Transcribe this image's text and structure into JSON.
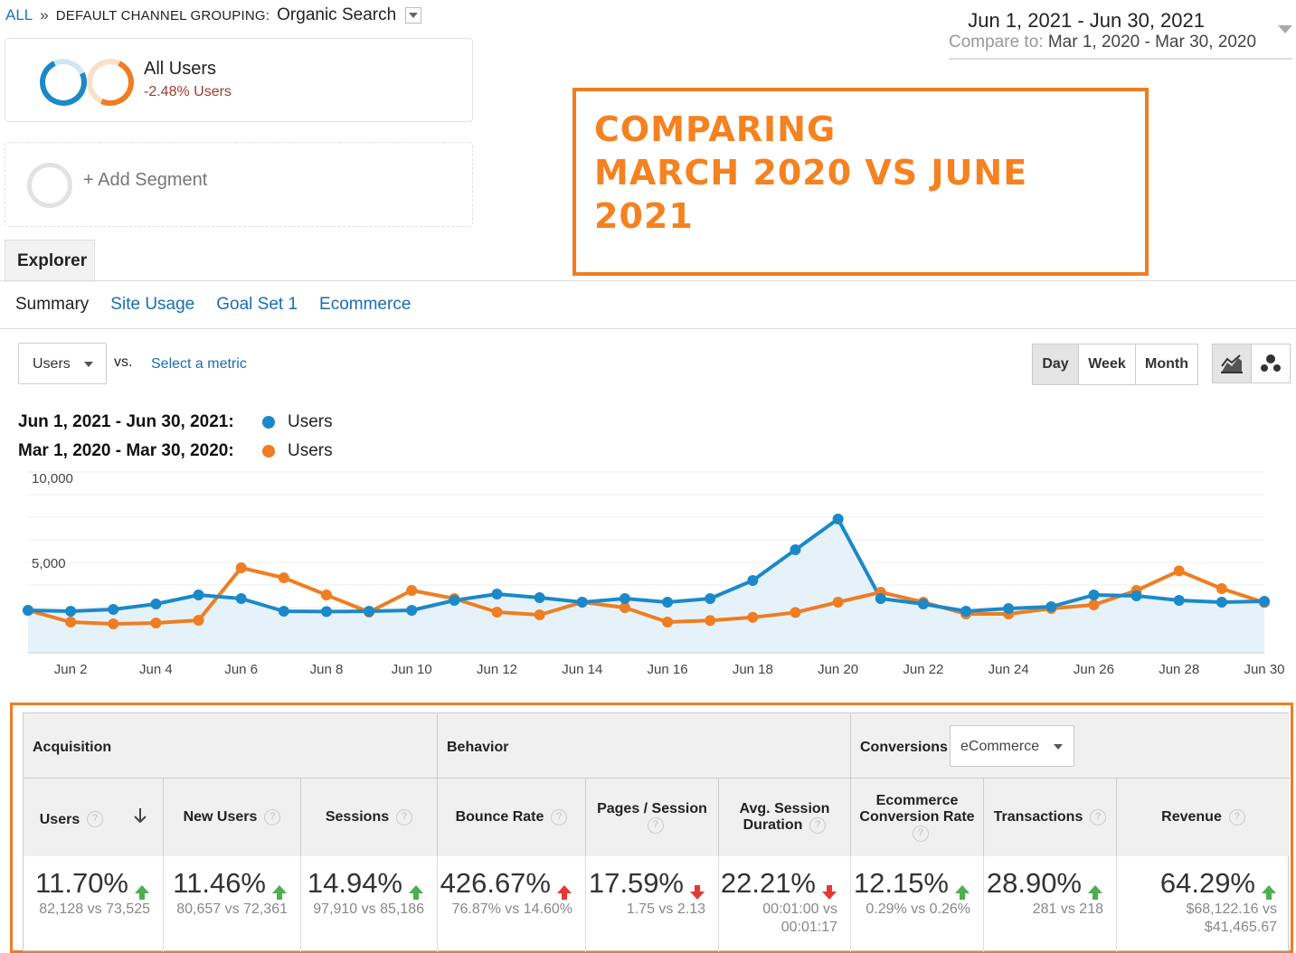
{
  "breadcrumb": {
    "all": "ALL",
    "sep": "»",
    "grouping": "DEFAULT CHANNEL GROUPING:",
    "value": "Organic Search"
  },
  "date_range": {
    "main": "Jun 1, 2021 - Jun 30, 2021",
    "compare_label": "Compare to:",
    "compare_value": "Mar 1, 2020 - Mar 30, 2020"
  },
  "segments": {
    "all_users": "All Users",
    "all_users_change": "-2.48% Users",
    "add_segment": "+ Add Segment"
  },
  "callout": {
    "line1": "COMPARING",
    "line2": "MARCH 2020 VS JUNE",
    "line3": "2021",
    "color": "#f58220"
  },
  "tabs": {
    "explorer": "Explorer",
    "sub": [
      "Summary",
      "Site Usage",
      "Goal Set 1",
      "Ecommerce"
    ],
    "active": "Summary"
  },
  "controls": {
    "metric": "Users",
    "vs": "vs.",
    "select_metric": "Select a metric",
    "periods": [
      "Day",
      "Week",
      "Month"
    ],
    "active_period": "Day"
  },
  "legend": [
    {
      "range": "Jun 1, 2021 - Jun 30, 2021:",
      "metric": "Users",
      "color": "#1b89c9"
    },
    {
      "range": "Mar 1, 2020 - Mar 30, 2020:",
      "metric": "Users",
      "color": "#ef7d22"
    }
  ],
  "chart_data": {
    "type": "line",
    "x": [
      "Jun 1",
      "Jun 2",
      "Jun 3",
      "Jun 4",
      "Jun 5",
      "Jun 6",
      "Jun 7",
      "Jun 8",
      "Jun 9",
      "Jun 10",
      "Jun 11",
      "Jun 12",
      "Jun 13",
      "Jun 14",
      "Jun 15",
      "Jun 16",
      "Jun 17",
      "Jun 18",
      "Jun 19",
      "Jun 20",
      "Jun 21",
      "Jun 22",
      "Jun 23",
      "Jun 24",
      "Jun 25",
      "Jun 26",
      "Jun 27",
      "Jun 28",
      "Jun 29",
      "Jun 30"
    ],
    "x_tick_labels": [
      "Jun 2",
      "Jun 4",
      "Jun 6",
      "Jun 8",
      "Jun 10",
      "Jun 12",
      "Jun 14",
      "Jun 16",
      "Jun 18",
      "Jun 20",
      "Jun 22",
      "Jun 24",
      "Jun 26",
      "Jun 28",
      "Jun 30"
    ],
    "y_ticks": [
      "10,000",
      "5,000"
    ],
    "ylim": [
      0,
      10000
    ],
    "series": [
      {
        "name": "Users",
        "color": "#1b89c9",
        "values": [
          2350,
          2300,
          2400,
          2700,
          3200,
          3000,
          2300,
          2280,
          2300,
          2350,
          2900,
          3250,
          3050,
          2800,
          3000,
          2800,
          3000,
          4000,
          5700,
          7400,
          3000,
          2700,
          2300,
          2450,
          2550,
          3200,
          3150,
          2900,
          2800,
          2850
        ]
      },
      {
        "name": "Users",
        "color": "#ef7d22",
        "values": [
          2350,
          1700,
          1600,
          1650,
          1800,
          4700,
          4150,
          3200,
          2250,
          3450,
          3000,
          2250,
          2100,
          2800,
          2500,
          1700,
          1790,
          1960,
          2230,
          2800,
          3350,
          2800,
          2150,
          2150,
          2450,
          2650,
          3450,
          4530,
          3550,
          2780
        ]
      }
    ]
  },
  "table": {
    "groups": {
      "acquisition": "Acquisition",
      "behavior": "Behavior",
      "conversions": "Conversions",
      "conv_select": "eCommerce"
    },
    "help_mark": "?",
    "columns": [
      {
        "header": "Users",
        "pct": "11.70%",
        "dir": "up",
        "sub1": "82,128 vs 73,525",
        "sub2": "",
        "sorted": true
      },
      {
        "header": "New Users",
        "pct": "11.46%",
        "dir": "up",
        "sub1": "80,657 vs 72,361",
        "sub2": ""
      },
      {
        "header": "Sessions",
        "pct": "14.94%",
        "dir": "up",
        "sub1": "97,910 vs 85,186",
        "sub2": ""
      },
      {
        "header": "Bounce Rate",
        "pct": "426.67%",
        "dir": "up-red",
        "sub1": "76.87% vs 14.60%",
        "sub2": ""
      },
      {
        "header": "Pages / Session",
        "pct": "17.59%",
        "dir": "down",
        "sub1": "1.75 vs 2.13",
        "sub2": ""
      },
      {
        "header": "Avg. Session Duration",
        "pct": "22.21%",
        "dir": "down",
        "sub1": "00:01:00 vs",
        "sub2": "00:01:17"
      },
      {
        "header": "Ecommerce Conversion Rate",
        "pct": "12.15%",
        "dir": "up",
        "sub1": "0.29% vs 0.26%",
        "sub2": ""
      },
      {
        "header": "Transactions",
        "pct": "28.90%",
        "dir": "up",
        "sub1": "281 vs 218",
        "sub2": ""
      },
      {
        "header": "Revenue",
        "pct": "64.29%",
        "dir": "up",
        "sub1": "$68,122.16 vs",
        "sub2": "$41,465.67"
      }
    ]
  }
}
